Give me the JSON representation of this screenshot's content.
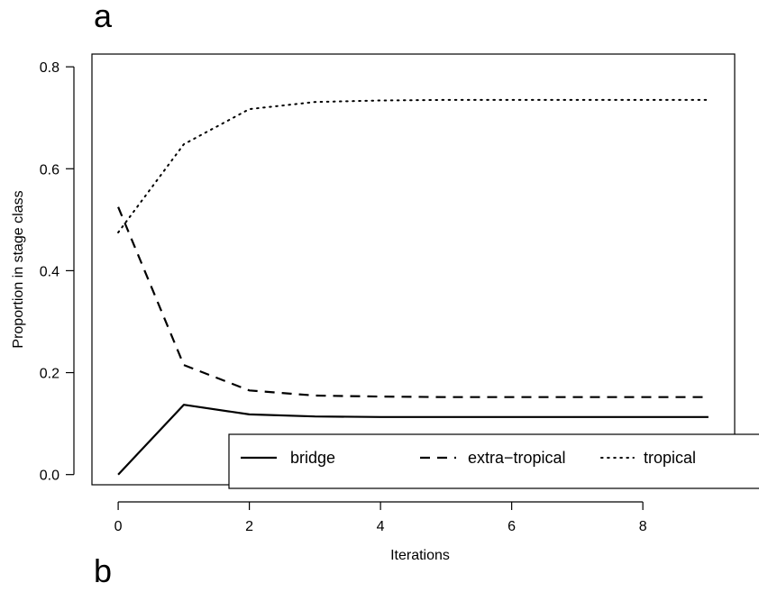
{
  "panel_labels": {
    "top": "a",
    "bottom": "b"
  },
  "chart_data": {
    "type": "line",
    "title": "",
    "xlabel": "Iterations",
    "ylabel": "Proportion in stage class",
    "xlim": [
      -0.4,
      9.4
    ],
    "ylim": [
      -0.02,
      0.825
    ],
    "xticks": [
      0,
      2,
      4,
      6,
      8
    ],
    "yticks": [
      0.0,
      0.2,
      0.4,
      0.6,
      0.8
    ],
    "ytick_labels": [
      "0.0",
      "0.2",
      "0.4",
      "0.6",
      "0.8"
    ],
    "grid": false,
    "legend_position": "bottom-right",
    "x": [
      0,
      1,
      2,
      3,
      4,
      5,
      6,
      7,
      8,
      9
    ],
    "series": [
      {
        "name": "bridge",
        "style": "solid",
        "values": [
          0.0,
          0.137,
          0.118,
          0.114,
          0.113,
          0.113,
          0.113,
          0.113,
          0.113,
          0.113
        ]
      },
      {
        "name": "extra−tropical",
        "style": "dashed",
        "values": [
          0.525,
          0.215,
          0.165,
          0.155,
          0.153,
          0.152,
          0.152,
          0.152,
          0.152,
          0.152
        ]
      },
      {
        "name": "tropical",
        "style": "dotted",
        "values": [
          0.475,
          0.648,
          0.717,
          0.731,
          0.734,
          0.735,
          0.735,
          0.735,
          0.735,
          0.735
        ]
      }
    ],
    "colors": {
      "line": "#000000",
      "background": "#ffffff"
    }
  }
}
